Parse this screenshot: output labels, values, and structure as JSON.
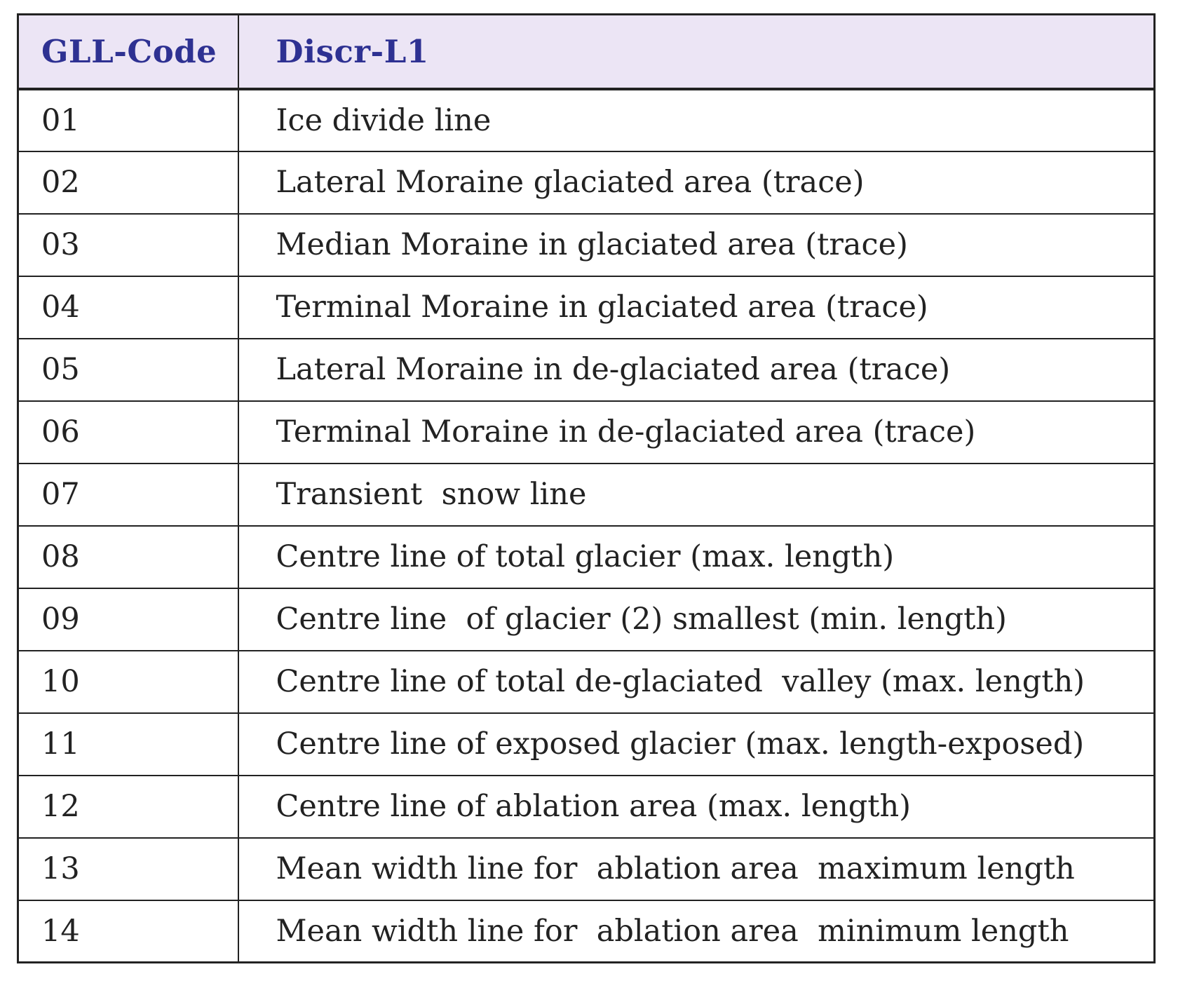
{
  "table": {
    "header_code": "GLL-Code",
    "header_desc": "Discr-L1",
    "header_color": "#2e3192",
    "header_bg": "#ece5f5",
    "rows": [
      {
        "code": "01",
        "desc": "Ice divide line"
      },
      {
        "code": "02",
        "desc": "Lateral Moraine glaciated area (trace)"
      },
      {
        "code": "03",
        "desc": "Median Moraine in glaciated area (trace)"
      },
      {
        "code": "04",
        "desc": "Terminal Moraine in glaciated area (trace)"
      },
      {
        "code": "05",
        "desc": "Lateral Moraine in de-glaciated area (trace)"
      },
      {
        "code": "06",
        "desc": "Terminal Moraine in de-glaciated area (trace)"
      },
      {
        "code": "07",
        "desc": "Transient  snow line"
      },
      {
        "code": "08",
        "desc": "Centre line of total glacier (max. length)"
      },
      {
        "code": "09",
        "desc": "Centre line  of glacier (2) smallest (min. length)"
      },
      {
        "code": "10",
        "desc": "Centre line of total de-glaciated  valley (max. length)"
      },
      {
        "code": "11",
        "desc": "Centre line of exposed glacier (max. length-exposed)"
      },
      {
        "code": "12",
        "desc": "Centre line of ablation area (max. length)"
      },
      {
        "code": "13",
        "desc": "Mean width line for  ablation area  maximum length"
      },
      {
        "code": "14",
        "desc": "Mean width line for  ablation area  minimum length"
      }
    ]
  }
}
